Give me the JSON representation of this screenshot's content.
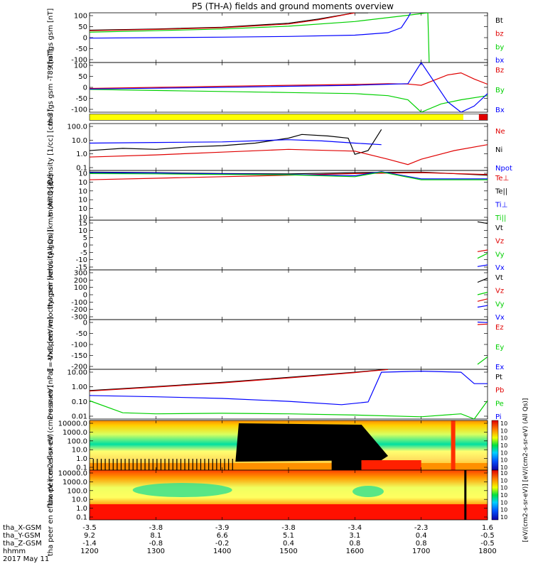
{
  "title": "P5 (TH-A) fields and ground moments overview",
  "date": "2017 May 11",
  "colors": {
    "black": "#000000",
    "red": "#e00000",
    "green": "#00d000",
    "blue": "#0000ff",
    "yellow": "#ffff00",
    "axis": "#000000"
  },
  "chart_data": {
    "type": "line",
    "time_axis": {
      "hhmm": [
        "1200",
        "1300",
        "1400",
        "1500",
        "1600",
        "1700",
        "1800"
      ],
      "x_gsm": [
        "-3.5",
        "-3.8",
        "-3.9",
        "-3.8",
        "-3.4",
        "-2.3",
        "1.6"
      ],
      "y_gsm": [
        "9.2",
        "8.1",
        "6.6",
        "5.1",
        "3.1",
        "0.4",
        "-0.5"
      ],
      "z_gsm": [
        "-1.4",
        "-0.8",
        "-0.2",
        "0.4",
        "0.8",
        "0.8",
        "-0.5"
      ],
      "row_labels": [
        "tha_X-GSM",
        "tha_Y-GSM",
        "tha_Z-GSM",
        "hhmm"
      ]
    },
    "panels": [
      {
        "id": "fgs",
        "ylabel": "tha fgs gsm [nT]",
        "yticks": [
          "100",
          "50",
          "0",
          "-50",
          "-100"
        ],
        "ylim": [
          -100,
          100
        ],
        "legend": [
          {
            "label": "Bt",
            "color": "black"
          },
          {
            "label": "bz",
            "color": "red"
          },
          {
            "label": "by",
            "color": "green"
          },
          {
            "label": "bx",
            "color": "blue"
          }
        ],
        "series": [
          {
            "key": "black",
            "x": [
              1200,
              1300,
              1400,
              1500,
              1545,
              1600,
              1620
            ],
            "y": [
              30,
              35,
              42,
              58,
              75,
              100,
              100
            ]
          },
          {
            "key": "red",
            "x": [
              1200,
              1300,
              1400,
              1500,
              1545,
              1600
            ],
            "y": [
              28,
              33,
              40,
              55,
              72,
              100
            ]
          },
          {
            "key": "green",
            "x": [
              1200,
              1300,
              1400,
              1500,
              1600,
              1680,
              1710,
              1712
            ],
            "y": [
              22,
              28,
              35,
              46,
              65,
              90,
              100,
              -100
            ]
          },
          {
            "key": "blue",
            "x": [
              1200,
              1300,
              1400,
              1500,
              1600,
              1650,
              1670,
              1680,
              1684
            ],
            "y": [
              -2,
              0,
              2,
              5,
              10,
              20,
              40,
              80,
              100
            ]
          }
        ]
      },
      {
        "id": "fgs_dipole",
        "ylabel": "tha fgs gsm -T89 [nT]",
        "yticks": [
          "100",
          "50",
          "0",
          "-50",
          "-100"
        ],
        "ylim": [
          -120,
          120
        ],
        "legend": [
          {
            "label": "Bz",
            "color": "red"
          },
          {
            "label": "By",
            "color": "green"
          },
          {
            "label": "Bx",
            "color": "blue"
          }
        ],
        "series": [
          {
            "key": "red",
            "x": [
              1200,
              1300,
              1400,
              1500,
              1600,
              1650,
              1680,
              1700,
              1740,
              1760,
              1780,
              1800
            ],
            "y": [
              -5,
              0,
              5,
              10,
              14,
              18,
              16,
              10,
              60,
              70,
              40,
              15
            ]
          },
          {
            "key": "green",
            "x": [
              1200,
              1300,
              1400,
              1500,
              1600,
              1650,
              1680,
              1700,
              1730,
              1760,
              1800
            ],
            "y": [
              -10,
              -15,
              -20,
              -25,
              -30,
              -40,
              -60,
              -120,
              -80,
              -60,
              -40
            ]
          },
          {
            "key": "blue",
            "x": [
              1200,
              1300,
              1400,
              1500,
              1600,
              1650,
              1680,
              1700,
              1740,
              1760,
              1780,
              1800
            ],
            "y": [
              -8,
              -4,
              0,
              5,
              10,
              15,
              18,
              120,
              -70,
              -120,
              -90,
              -30
            ]
          }
        ]
      },
      {
        "id": "density",
        "ylabel": "Density [1/cc] [cm-3]",
        "yticks": [
          "100.0",
          "10.0",
          "1.0",
          "0.1"
        ],
        "log": true,
        "ylim": [
          0.05,
          300
        ],
        "legend": [
          {
            "label": "Ne",
            "color": "red"
          },
          {
            "label": "Ni",
            "color": "black"
          },
          {
            "label": "Npot",
            "color": "blue"
          }
        ],
        "series": [
          {
            "key": "black",
            "x": [
              1200,
              1250,
              1300,
              1350,
              1400,
              1450,
              1500,
              1520,
              1560,
              1590,
              1600,
              1620,
              1640
            ],
            "y": [
              2,
              3,
              2.5,
              4,
              5,
              8,
              20,
              40,
              30,
              20,
              1,
              2,
              100
            ]
          },
          {
            "key": "blue",
            "x": [
              1200,
              1300,
              1400,
              1500,
              1550,
              1600,
              1640
            ],
            "y": [
              8,
              9,
              10,
              15,
              12,
              8,
              6
            ]
          },
          {
            "key": "red",
            "x": [
              1200,
              1300,
              1400,
              1500,
              1600,
              1650,
              1680,
              1700,
              1750,
              1800
            ],
            "y": [
              0.6,
              0.9,
              1.5,
              2.5,
              1.8,
              0.4,
              0.15,
              0.4,
              2,
              6
            ]
          }
        ]
      },
      {
        "id": "temperature",
        "ylabel": "momt3 [eV]",
        "yticks": [
          "10",
          "10",
          "10",
          "10",
          "10",
          "10"
        ],
        "log": true,
        "ylim": [
          1e-10,
          1000000.0
        ],
        "legend": [
          {
            "label": "Te⊥",
            "color": "red"
          },
          {
            "label": "Te||",
            "color": "black"
          },
          {
            "label": "Ti⊥",
            "color": "blue"
          },
          {
            "label": "Ti||",
            "color": "green"
          }
        ],
        "series": [
          {
            "key": "black",
            "x": [
              1200,
              1300,
              1400,
              1500,
              1600,
              1700,
              1800
            ],
            "y": [
              300000,
              200000,
              100000,
              80000,
              200000,
              300000,
              30000
            ]
          },
          {
            "key": "red",
            "x": [
              1200,
              1300,
              1400,
              1500,
              1600,
              1700,
              1800
            ],
            "y": [
              1000,
              3000,
              10000,
              30000,
              100000,
              200000,
              50000
            ]
          },
          {
            "key": "blue",
            "x": [
              1200,
              1300,
              1400,
              1500,
              1600,
              1640,
              1700,
              1800
            ],
            "y": [
              200000,
              150000,
              80000,
              50000,
              20000,
              400000,
              2000,
              2000
            ]
          },
          {
            "key": "green",
            "x": [
              1200,
              1300,
              1400,
              1500,
              1600,
              1640,
              1700,
              1800
            ],
            "y": [
              100000,
              80000,
              50000,
              40000,
              10000,
              300000,
              1000,
              1000
            ]
          }
        ]
      },
      {
        "id": "ion_velocity",
        "ylabel": "tha peir velocity gsm [km/s (All Qs)]",
        "yticks": [
          "15",
          "10",
          "5",
          "0",
          "-5",
          "-10",
          "-15"
        ],
        "ylim": [
          -15,
          15
        ],
        "legend": [
          {
            "label": "Vt",
            "color": "black"
          },
          {
            "label": "Vz",
            "color": "red"
          },
          {
            "label": "Vy",
            "color": "green"
          },
          {
            "label": "Vx",
            "color": "blue"
          }
        ],
        "series": [
          {
            "key": "black",
            "x": [
              1785,
              1800
            ],
            "y": [
              14,
              13
            ]
          },
          {
            "key": "red",
            "x": [
              1785,
              1800
            ],
            "y": [
              -4,
              -3
            ]
          },
          {
            "key": "green",
            "x": [
              1785,
              1800
            ],
            "y": [
              -8,
              -5
            ]
          },
          {
            "key": "blue",
            "x": [
              1785,
              1800
            ],
            "y": [
              -13,
              -12
            ]
          }
        ]
      },
      {
        "id": "electron_velocity",
        "ylabel": "tha peer velocity gsm [km/s (All Qs)]",
        "yticks": [
          "300",
          "200",
          "100",
          "0",
          "-100",
          "-200",
          "-300"
        ],
        "ylim": [
          -300,
          300
        ],
        "legend": [
          {
            "label": "Vt",
            "color": "black"
          },
          {
            "label": "Vz",
            "color": "red"
          },
          {
            "label": "Vy",
            "color": "green"
          },
          {
            "label": "Vx",
            "color": "blue"
          }
        ],
        "series": [
          {
            "key": "black",
            "x": [
              1785,
              1800
            ],
            "y": [
              150,
              200
            ]
          },
          {
            "key": "green",
            "x": [
              1785,
              1800
            ],
            "y": [
              0,
              30
            ]
          },
          {
            "key": "red",
            "x": [
              1785,
              1800
            ],
            "y": [
              -80,
              -50
            ]
          },
          {
            "key": "blue",
            "x": [
              1785,
              1800
            ],
            "y": [
              -150,
              -130
            ]
          }
        ]
      },
      {
        "id": "efield",
        "ylabel": "E=-VxB [mV/m]",
        "yticks": [
          "0",
          "-50",
          "-100",
          "-150",
          "-200"
        ],
        "ylim": [
          -200,
          0
        ],
        "legend": [
          {
            "label": "Ez",
            "color": "red"
          },
          {
            "label": "Ey",
            "color": "green"
          },
          {
            "label": "Ex",
            "color": "blue"
          }
        ],
        "series": [
          {
            "key": "blue",
            "x": [
              1785,
              1800
            ],
            "y": [
              -10,
              -12
            ]
          },
          {
            "key": "red",
            "x": [
              1785,
              1800
            ],
            "y": [
              -20,
              -18
            ]
          },
          {
            "key": "green",
            "x": [
              1785,
              1800
            ],
            "y": [
              -180,
              -150
            ]
          }
        ]
      },
      {
        "id": "pressure",
        "ylabel": "Pressure [nPa]",
        "yticks": [
          "10.00",
          "1.00",
          "0.10",
          "0.01"
        ],
        "log": true,
        "ylim": [
          0.004,
          25
        ],
        "legend": [
          {
            "label": "Pt",
            "color": "black"
          },
          {
            "label": "Pb",
            "color": "red"
          },
          {
            "label": "Pe",
            "color": "green"
          },
          {
            "label": "Pi",
            "color": "blue"
          }
        ],
        "series": [
          {
            "key": "black",
            "x": [
              1200,
              1300,
              1400,
              1500,
              1600,
              1650
            ],
            "y": [
              0.6,
              1.2,
              2.5,
              6,
              15,
              25
            ]
          },
          {
            "key": "red",
            "x": [
              1200,
              1300,
              1400,
              1500,
              1600,
              1650
            ],
            "y": [
              0.55,
              1.1,
              2.3,
              5.5,
              14,
              24
            ]
          },
          {
            "key": "blue",
            "x": [
              1200,
              1300,
              1400,
              1500,
              1580,
              1620,
              1640,
              1700,
              1760,
              1780,
              1800
            ],
            "y": [
              0.25,
              0.2,
              0.15,
              0.09,
              0.05,
              0.08,
              15,
              18,
              15,
              2,
              2
            ]
          },
          {
            "key": "green",
            "x": [
              1200,
              1250,
              1300,
              1400,
              1500,
              1600,
              1700,
              1760,
              1780,
              1800
            ],
            "y": [
              0.1,
              0.012,
              0.01,
              0.011,
              0.01,
              0.008,
              0.006,
              0.01,
              0.004,
              0.1
            ]
          }
        ]
      },
      {
        "id": "ion_spectrum",
        "type": "heatmap",
        "ylabel": "tha peir en eflux eV (cm2-s-sr-eV)",
        "yticks": [
          "10000.0",
          "1000.0",
          "100.0",
          "10.0",
          "1.0",
          "0.1"
        ]
      },
      {
        "id": "electron_spectrum",
        "type": "heatmap",
        "ylabel": "tha peer en eflux eV (cm2-s-sr-eV)",
        "yticks": [
          "10000.0",
          "1000.0",
          "100.0",
          "10.0",
          "1.0",
          "0.1"
        ]
      }
    ],
    "colorbar": {
      "ticks": [
        "10",
        "10",
        "10",
        "10",
        "10",
        "10",
        "10"
      ],
      "label": "[eV/(cm2-s-sr-eV)] [eV/(cm2-s-sr-eV) (All Qs)]"
    }
  }
}
